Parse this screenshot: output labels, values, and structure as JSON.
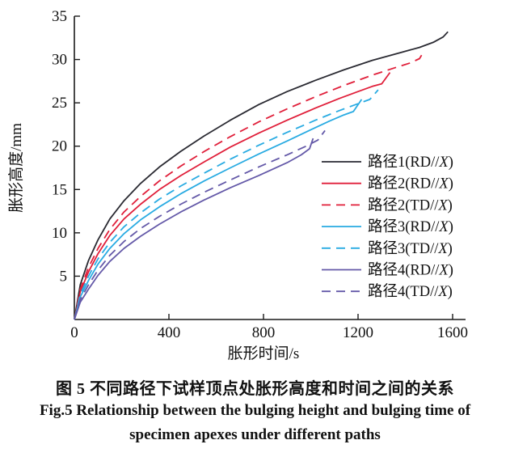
{
  "figure": {
    "caption_cn": "图 5  不同路径下试样顶点处胀形高度和时间之间的关系",
    "caption_en_line1": "Fig.5  Relationship between the bulging height and bulging time of",
    "caption_en_line2": "specimen apexes under different paths"
  },
  "chart_data": {
    "type": "line",
    "title": "",
    "xlabel": "胀形时间/s",
    "ylabel": "胀形高度/mm",
    "xlim": [
      0,
      1600
    ],
    "ylim": [
      0,
      35
    ],
    "xticks": [
      0,
      400,
      800,
      1200,
      1600
    ],
    "yticks": [
      5,
      10,
      15,
      20,
      25,
      30,
      35
    ],
    "grid": false,
    "legend_position": "inside-right",
    "axis_color": "#1a1a1a",
    "series": [
      {
        "name": "路径1(RD//X)",
        "color": "#2a2a32",
        "dash": false,
        "points": [
          [
            0,
            0
          ],
          [
            25,
            4.0
          ],
          [
            60,
            6.8
          ],
          [
            100,
            9.2
          ],
          [
            150,
            11.6
          ],
          [
            210,
            13.7
          ],
          [
            280,
            15.7
          ],
          [
            360,
            17.6
          ],
          [
            450,
            19.4
          ],
          [
            550,
            21.2
          ],
          [
            660,
            23.0
          ],
          [
            780,
            24.8
          ],
          [
            900,
            26.3
          ],
          [
            1020,
            27.6
          ],
          [
            1140,
            28.8
          ],
          [
            1260,
            29.9
          ],
          [
            1380,
            30.8
          ],
          [
            1460,
            31.4
          ],
          [
            1520,
            32.0
          ],
          [
            1560,
            32.6
          ],
          [
            1580,
            33.2
          ]
        ]
      },
      {
        "name": "路径2(RD//X)",
        "color": "#e01f3a",
        "dash": false,
        "points": [
          [
            0,
            0
          ],
          [
            25,
            3.2
          ],
          [
            60,
            5.5
          ],
          [
            100,
            7.6
          ],
          [
            150,
            9.7
          ],
          [
            210,
            11.6
          ],
          [
            280,
            13.3
          ],
          [
            360,
            15.0
          ],
          [
            450,
            16.6
          ],
          [
            550,
            18.2
          ],
          [
            660,
            19.9
          ],
          [
            780,
            21.5
          ],
          [
            900,
            23.0
          ],
          [
            1020,
            24.4
          ],
          [
            1120,
            25.5
          ],
          [
            1200,
            26.3
          ],
          [
            1260,
            26.9
          ],
          [
            1300,
            27.2
          ],
          [
            1335,
            28.5
          ]
        ]
      },
      {
        "name": "路径2(TD//X)",
        "color": "#e01f3a",
        "dash": true,
        "points": [
          [
            0,
            0
          ],
          [
            25,
            3.5
          ],
          [
            60,
            6.0
          ],
          [
            100,
            8.2
          ],
          [
            150,
            10.4
          ],
          [
            210,
            12.4
          ],
          [
            280,
            14.2
          ],
          [
            360,
            16.0
          ],
          [
            450,
            17.7
          ],
          [
            550,
            19.4
          ],
          [
            660,
            21.1
          ],
          [
            780,
            22.8
          ],
          [
            900,
            24.3
          ],
          [
            1020,
            25.7
          ],
          [
            1140,
            27.0
          ],
          [
            1260,
            28.2
          ],
          [
            1350,
            29.0
          ],
          [
            1420,
            29.6
          ],
          [
            1460,
            30.1
          ],
          [
            1480,
            31.0
          ]
        ]
      },
      {
        "name": "路径3(RD//X)",
        "color": "#29abe2",
        "dash": false,
        "points": [
          [
            0,
            0
          ],
          [
            25,
            2.6
          ],
          [
            60,
            4.5
          ],
          [
            100,
            6.4
          ],
          [
            150,
            8.2
          ],
          [
            210,
            9.9
          ],
          [
            280,
            11.5
          ],
          [
            360,
            13.0
          ],
          [
            450,
            14.5
          ],
          [
            550,
            16.0
          ],
          [
            660,
            17.5
          ],
          [
            780,
            19.1
          ],
          [
            900,
            20.6
          ],
          [
            1000,
            21.9
          ],
          [
            1080,
            22.9
          ],
          [
            1140,
            23.6
          ],
          [
            1180,
            24.0
          ],
          [
            1215,
            25.4
          ]
        ]
      },
      {
        "name": "路径3(TD//X)",
        "color": "#29abe2",
        "dash": true,
        "points": [
          [
            0,
            0
          ],
          [
            25,
            2.9
          ],
          [
            60,
            5.0
          ],
          [
            100,
            7.0
          ],
          [
            150,
            8.9
          ],
          [
            210,
            10.7
          ],
          [
            280,
            12.3
          ],
          [
            360,
            13.9
          ],
          [
            450,
            15.4
          ],
          [
            550,
            16.9
          ],
          [
            660,
            18.5
          ],
          [
            780,
            20.1
          ],
          [
            900,
            21.6
          ],
          [
            1020,
            23.0
          ],
          [
            1120,
            24.1
          ],
          [
            1200,
            24.9
          ],
          [
            1250,
            25.4
          ],
          [
            1285,
            26.5
          ]
        ]
      },
      {
        "name": "路径4(RD//X)",
        "color": "#6459a8",
        "dash": false,
        "points": [
          [
            0,
            0
          ],
          [
            25,
            2.0
          ],
          [
            60,
            3.5
          ],
          [
            100,
            5.1
          ],
          [
            150,
            6.7
          ],
          [
            210,
            8.2
          ],
          [
            280,
            9.6
          ],
          [
            360,
            11.0
          ],
          [
            450,
            12.4
          ],
          [
            550,
            13.8
          ],
          [
            660,
            15.2
          ],
          [
            780,
            16.6
          ],
          [
            900,
            18.1
          ],
          [
            960,
            19.0
          ],
          [
            995,
            19.7
          ],
          [
            1010,
            20.9
          ]
        ]
      },
      {
        "name": "路径4(TD//X)",
        "color": "#6459a8",
        "dash": true,
        "points": [
          [
            0,
            0
          ],
          [
            25,
            2.3
          ],
          [
            60,
            4.0
          ],
          [
            100,
            5.7
          ],
          [
            150,
            7.4
          ],
          [
            210,
            9.0
          ],
          [
            280,
            10.5
          ],
          [
            360,
            11.9
          ],
          [
            450,
            13.3
          ],
          [
            550,
            14.7
          ],
          [
            660,
            16.1
          ],
          [
            780,
            17.6
          ],
          [
            900,
            19.0
          ],
          [
            980,
            20.0
          ],
          [
            1030,
            20.7
          ],
          [
            1060,
            21.8
          ]
        ]
      }
    ]
  }
}
